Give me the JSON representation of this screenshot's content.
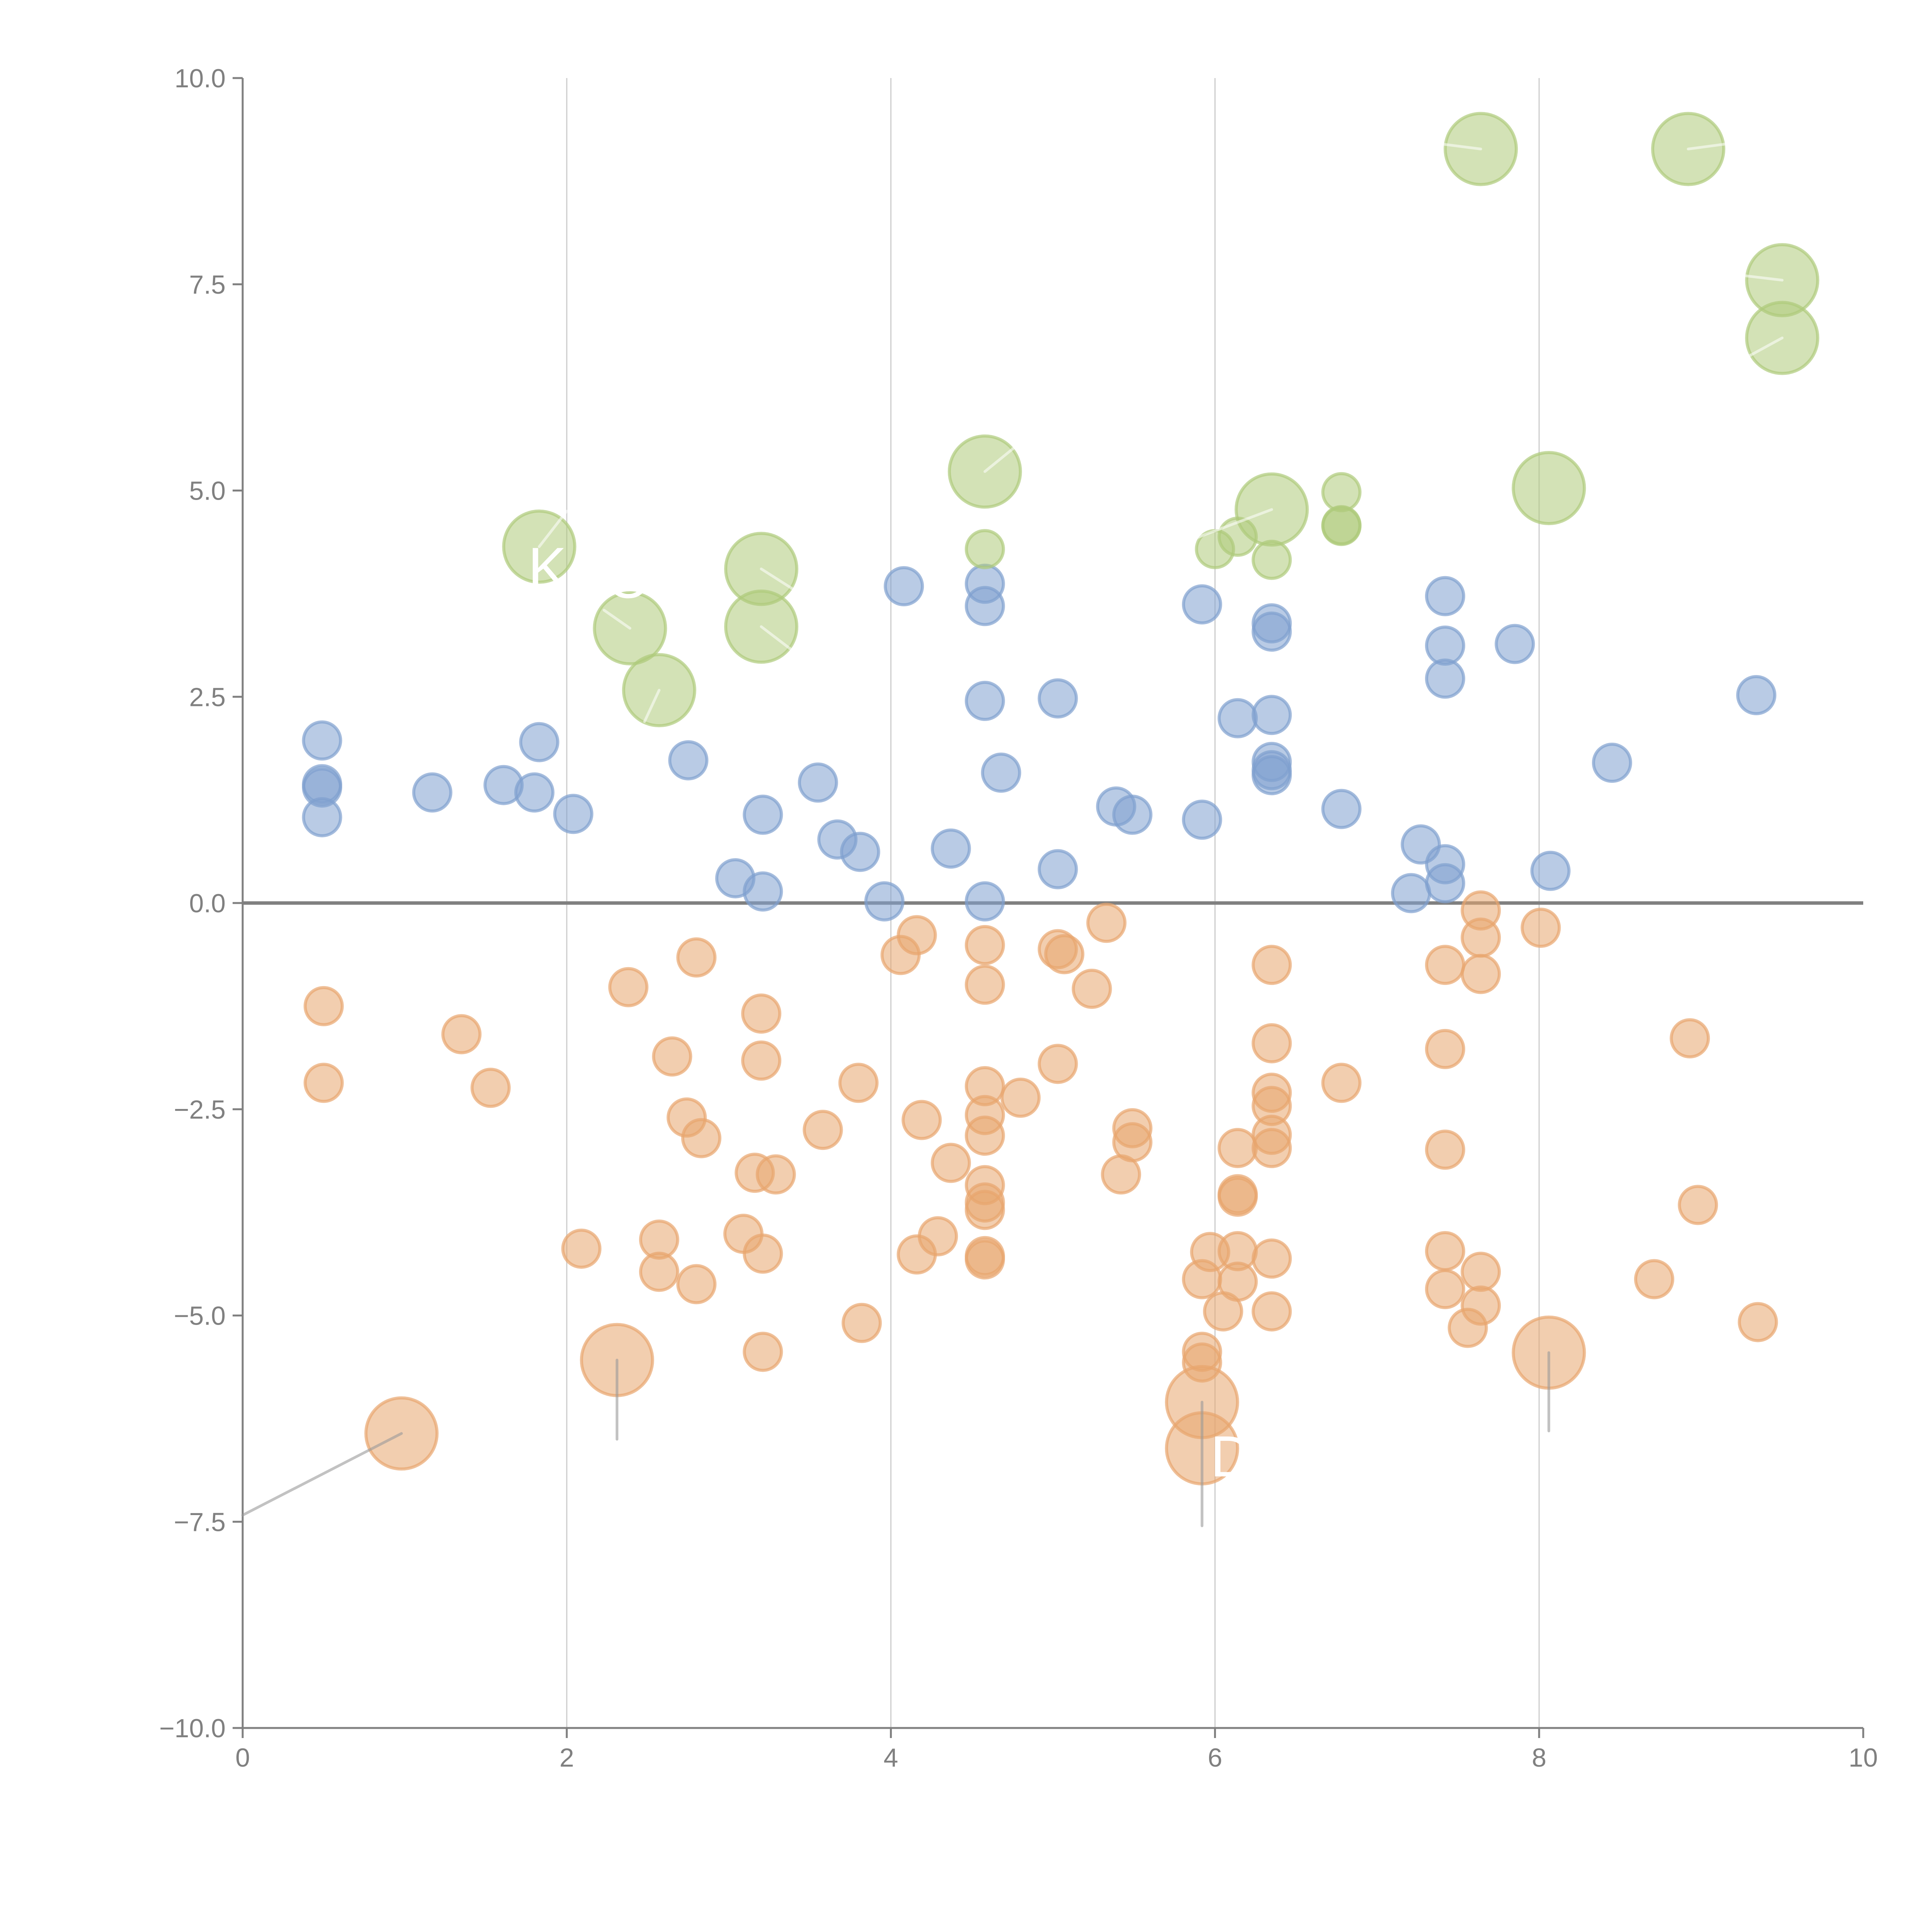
{
  "chart_data": {
    "type": "scatter",
    "subtype": "bubble",
    "title": "",
    "xlabel": "",
    "ylabel": "",
    "xlim": [
      0,
      10
    ],
    "ylim": [
      -10,
      10
    ],
    "x_ticks": [
      0,
      2,
      4,
      6,
      8,
      10
    ],
    "x_tick_labels": [
      "0",
      "2",
      "4",
      "6",
      "8",
      "10"
    ],
    "y_ticks": [
      10,
      7.5,
      5,
      2.5,
      0,
      -2.5,
      -5,
      -7.5,
      -10
    ],
    "y_tick_labels": [
      "10.0",
      "7.5",
      "5.0",
      "2.5",
      "0.0",
      "−2.5",
      "−5.0",
      "−7.5",
      "−10.0"
    ],
    "grid": "vertical",
    "zero_line": true,
    "legend": "none",
    "colors": {
      "blue": "#7fa0cf",
      "orange": "#e8a56e",
      "green": "#aecb7a",
      "axis": "#808080",
      "grid": "#cccccc"
    },
    "series": [
      {
        "name": "blue",
        "color": "#7fa0cf",
        "points": [
          {
            "x": 0.49,
            "y": 1.97,
            "size": 1
          },
          {
            "x": 0.49,
            "y": 1.44,
            "size": 1
          },
          {
            "x": 0.49,
            "y": 1.4,
            "size": 1
          },
          {
            "x": 0.49,
            "y": 1.04,
            "size": 1
          },
          {
            "x": 1.17,
            "y": 1.34,
            "size": 1
          },
          {
            "x": 1.61,
            "y": 1.43,
            "size": 1
          },
          {
            "x": 1.8,
            "y": 1.34,
            "size": 1
          },
          {
            "x": 1.83,
            "y": 1.95,
            "size": 1
          },
          {
            "x": 2.04,
            "y": 1.08,
            "size": 1
          },
          {
            "x": 2.75,
            "y": 1.73,
            "size": 1
          },
          {
            "x": 3.04,
            "y": 0.3,
            "size": 1
          },
          {
            "x": 3.21,
            "y": 0.14,
            "size": 1
          },
          {
            "x": 3.21,
            "y": 1.07,
            "size": 1
          },
          {
            "x": 3.55,
            "y": 1.46,
            "size": 1
          },
          {
            "x": 3.67,
            "y": 0.77,
            "size": 1
          },
          {
            "x": 3.81,
            "y": 0.62,
            "size": 1
          },
          {
            "x": 3.96,
            "y": 0.02,
            "size": 1
          },
          {
            "x": 4.08,
            "y": 3.84,
            "size": 1
          },
          {
            "x": 4.37,
            "y": 0.66,
            "size": 1
          },
          {
            "x": 4.58,
            "y": 3.87,
            "size": 1
          },
          {
            "x": 4.58,
            "y": 3.6,
            "size": 1
          },
          {
            "x": 4.58,
            "y": 2.45,
            "size": 1
          },
          {
            "x": 4.58,
            "y": 0.02,
            "size": 1
          },
          {
            "x": 4.68,
            "y": 1.58,
            "size": 1
          },
          {
            "x": 5.03,
            "y": 2.48,
            "size": 1
          },
          {
            "x": 5.03,
            "y": 0.41,
            "size": 1
          },
          {
            "x": 5.39,
            "y": 1.17,
            "size": 1
          },
          {
            "x": 5.49,
            "y": 1.07,
            "size": 1
          },
          {
            "x": 5.92,
            "y": 3.62,
            "size": 1
          },
          {
            "x": 5.92,
            "y": 1.01,
            "size": 1
          },
          {
            "x": 6.14,
            "y": 2.24,
            "size": 1
          },
          {
            "x": 6.35,
            "y": 3.39,
            "size": 1
          },
          {
            "x": 6.35,
            "y": 3.29,
            "size": 1
          },
          {
            "x": 6.35,
            "y": 2.28,
            "size": 1
          },
          {
            "x": 6.35,
            "y": 1.71,
            "size": 1
          },
          {
            "x": 6.35,
            "y": 1.61,
            "size": 1
          },
          {
            "x": 6.35,
            "y": 1.55,
            "size": 1
          },
          {
            "x": 6.78,
            "y": 1.14,
            "size": 1
          },
          {
            "x": 7.21,
            "y": 0.12,
            "size": 1
          },
          {
            "x": 7.27,
            "y": 0.71,
            "size": 1
          },
          {
            "x": 7.42,
            "y": 3.72,
            "size": 1
          },
          {
            "x": 7.42,
            "y": 3.12,
            "size": 1
          },
          {
            "x": 7.42,
            "y": 2.72,
            "size": 1
          },
          {
            "x": 7.42,
            "y": 0.47,
            "size": 1
          },
          {
            "x": 7.42,
            "y": 0.24,
            "size": 1
          },
          {
            "x": 7.85,
            "y": 3.14,
            "size": 1
          },
          {
            "x": 8.07,
            "y": 0.39,
            "size": 1
          },
          {
            "x": 8.45,
            "y": 1.7,
            "size": 1
          },
          {
            "x": 9.34,
            "y": 2.52,
            "size": 1
          }
        ]
      },
      {
        "name": "green",
        "color": "#aecb7a",
        "points": [
          {
            "x": 1.83,
            "y": 4.32,
            "size": 2
          },
          {
            "x": 2.39,
            "y": 3.33,
            "size": 2
          },
          {
            "x": 2.57,
            "y": 2.58,
            "size": 2
          },
          {
            "x": 3.2,
            "y": 4.05,
            "size": 2
          },
          {
            "x": 3.2,
            "y": 3.35,
            "size": 2
          },
          {
            "x": 4.58,
            "y": 5.23,
            "size": 2
          },
          {
            "x": 4.58,
            "y": 4.29,
            "size": 1
          },
          {
            "x": 6.0,
            "y": 4.29,
            "size": 1
          },
          {
            "x": 6.14,
            "y": 4.44,
            "size": 1
          },
          {
            "x": 6.35,
            "y": 4.77,
            "size": 2
          },
          {
            "x": 6.35,
            "y": 4.16,
            "size": 1
          },
          {
            "x": 6.78,
            "y": 4.98,
            "size": 1
          },
          {
            "x": 6.78,
            "y": 4.58,
            "size": 1
          },
          {
            "x": 6.78,
            "y": 4.57,
            "size": 1
          },
          {
            "x": 7.64,
            "y": 9.14,
            "size": 2
          },
          {
            "x": 8.06,
            "y": 5.03,
            "size": 2
          },
          {
            "x": 8.92,
            "y": 9.14,
            "size": 2
          },
          {
            "x": 9.5,
            "y": 7.55,
            "size": 2
          },
          {
            "x": 9.5,
            "y": 6.85,
            "size": 2
          }
        ]
      },
      {
        "name": "orange",
        "color": "#e8a56e",
        "points": [
          {
            "x": 0.5,
            "y": -1.25,
            "size": 1
          },
          {
            "x": 0.5,
            "y": -2.18,
            "size": 1
          },
          {
            "x": 1.35,
            "y": -1.59,
            "size": 1
          },
          {
            "x": 1.53,
            "y": -2.24,
            "size": 1
          },
          {
            "x": 2.09,
            "y": -4.19,
            "size": 1
          },
          {
            "x": 2.38,
            "y": -1.02,
            "size": 1
          },
          {
            "x": 2.57,
            "y": -4.08,
            "size": 1
          },
          {
            "x": 2.57,
            "y": -4.47,
            "size": 1
          },
          {
            "x": 2.65,
            "y": -1.86,
            "size": 1
          },
          {
            "x": 2.74,
            "y": -2.6,
            "size": 1
          },
          {
            "x": 2.8,
            "y": -0.66,
            "size": 1
          },
          {
            "x": 2.8,
            "y": -4.62,
            "size": 1
          },
          {
            "x": 2.83,
            "y": -2.85,
            "size": 1
          },
          {
            "x": 3.09,
            "y": -4.01,
            "size": 1
          },
          {
            "x": 3.16,
            "y": -3.27,
            "size": 1
          },
          {
            "x": 3.2,
            "y": -1.34,
            "size": 1
          },
          {
            "x": 3.2,
            "y": -1.91,
            "size": 1
          },
          {
            "x": 3.21,
            "y": -4.25,
            "size": 1
          },
          {
            "x": 3.21,
            "y": -5.44,
            "size": 1
          },
          {
            "x": 3.29,
            "y": -3.29,
            "size": 1
          },
          {
            "x": 3.58,
            "y": -2.75,
            "size": 1
          },
          {
            "x": 3.8,
            "y": -2.18,
            "size": 1
          },
          {
            "x": 3.82,
            "y": -5.09,
            "size": 1
          },
          {
            "x": 4.06,
            "y": -0.63,
            "size": 1
          },
          {
            "x": 4.16,
            "y": -4.26,
            "size": 1
          },
          {
            "x": 4.16,
            "y": -0.39,
            "size": 1
          },
          {
            "x": 4.19,
            "y": -2.63,
            "size": 1
          },
          {
            "x": 4.29,
            "y": -4.04,
            "size": 1
          },
          {
            "x": 4.37,
            "y": -3.15,
            "size": 1
          },
          {
            "x": 4.58,
            "y": -0.51,
            "size": 1
          },
          {
            "x": 4.58,
            "y": -0.99,
            "size": 1
          },
          {
            "x": 4.58,
            "y": -2.22,
            "size": 1
          },
          {
            "x": 4.58,
            "y": -2.57,
            "size": 1
          },
          {
            "x": 4.58,
            "y": -2.82,
            "size": 1
          },
          {
            "x": 4.58,
            "y": -3.42,
            "size": 1
          },
          {
            "x": 4.58,
            "y": -3.63,
            "size": 1
          },
          {
            "x": 4.58,
            "y": -3.72,
            "size": 1
          },
          {
            "x": 4.58,
            "y": -4.28,
            "size": 1
          },
          {
            "x": 4.58,
            "y": -4.32,
            "size": 1
          },
          {
            "x": 4.8,
            "y": -2.36,
            "size": 1
          },
          {
            "x": 5.03,
            "y": -0.56,
            "size": 1
          },
          {
            "x": 5.07,
            "y": -0.62,
            "size": 1
          },
          {
            "x": 5.03,
            "y": -1.95,
            "size": 1
          },
          {
            "x": 5.24,
            "y": -1.04,
            "size": 1
          },
          {
            "x": 5.33,
            "y": -0.24,
            "size": 1
          },
          {
            "x": 5.42,
            "y": -3.29,
            "size": 1
          },
          {
            "x": 5.49,
            "y": -2.73,
            "size": 1
          },
          {
            "x": 5.49,
            "y": -2.9,
            "size": 1
          },
          {
            "x": 5.92,
            "y": -4.56,
            "size": 1
          },
          {
            "x": 5.92,
            "y": -5.44,
            "size": 1
          },
          {
            "x": 5.92,
            "y": -5.57,
            "size": 1
          },
          {
            "x": 5.97,
            "y": -4.23,
            "size": 1
          },
          {
            "x": 6.05,
            "y": -4.95,
            "size": 1
          },
          {
            "x": 6.14,
            "y": -2.97,
            "size": 1
          },
          {
            "x": 6.14,
            "y": -3.53,
            "size": 1
          },
          {
            "x": 6.14,
            "y": -3.56,
            "size": 1
          },
          {
            "x": 6.14,
            "y": -4.22,
            "size": 1
          },
          {
            "x": 6.14,
            "y": -4.59,
            "size": 1
          },
          {
            "x": 6.35,
            "y": -0.75,
            "size": 1
          },
          {
            "x": 6.35,
            "y": -1.7,
            "size": 1
          },
          {
            "x": 6.35,
            "y": -2.3,
            "size": 1
          },
          {
            "x": 6.35,
            "y": -2.46,
            "size": 1
          },
          {
            "x": 6.35,
            "y": -2.81,
            "size": 1
          },
          {
            "x": 6.35,
            "y": -2.97,
            "size": 1
          },
          {
            "x": 6.35,
            "y": -4.31,
            "size": 1
          },
          {
            "x": 6.35,
            "y": -4.95,
            "size": 1
          },
          {
            "x": 6.78,
            "y": -2.18,
            "size": 1
          },
          {
            "x": 7.42,
            "y": -0.75,
            "size": 1
          },
          {
            "x": 7.42,
            "y": -1.77,
            "size": 1
          },
          {
            "x": 7.42,
            "y": -2.99,
            "size": 1
          },
          {
            "x": 7.42,
            "y": -4.22,
            "size": 1
          },
          {
            "x": 7.42,
            "y": -4.68,
            "size": 1
          },
          {
            "x": 7.56,
            "y": -5.15,
            "size": 1
          },
          {
            "x": 7.64,
            "y": -0.09,
            "size": 1
          },
          {
            "x": 7.64,
            "y": -0.42,
            "size": 1
          },
          {
            "x": 7.64,
            "y": -0.86,
            "size": 1
          },
          {
            "x": 7.64,
            "y": -4.47,
            "size": 1
          },
          {
            "x": 7.64,
            "y": -4.88,
            "size": 1
          },
          {
            "x": 8.01,
            "y": -0.3,
            "size": 1
          },
          {
            "x": 8.71,
            "y": -4.56,
            "size": 1
          },
          {
            "x": 8.93,
            "y": -1.64,
            "size": 1
          },
          {
            "x": 8.98,
            "y": -3.66,
            "size": 1
          },
          {
            "x": 9.35,
            "y": -5.08,
            "size": 1
          },
          {
            "x": 0.98,
            "y": -6.43,
            "size": 2
          },
          {
            "x": 2.31,
            "y": -5.54,
            "size": 2
          },
          {
            "x": 5.92,
            "y": -6.05,
            "size": 2
          },
          {
            "x": 5.92,
            "y": -6.61,
            "size": 2
          },
          {
            "x": 8.06,
            "y": -5.45,
            "size": 2
          }
        ]
      }
    ],
    "annotations": [
      {
        "text": "K",
        "x": 1.88,
        "y": 3.82,
        "anchor_x": 1.83,
        "anchor_y": 4.32
      },
      {
        "text": "O",
        "x": 2.38,
        "y": 3.7,
        "anchor_x": 2.39,
        "anchor_y": 3.33
      },
      {
        "text": "D",
        "x": 6.1,
        "y": -6.95,
        "anchor_x": 5.92,
        "anchor_y": -6.61
      }
    ],
    "leader_lines": [
      {
        "from": [
          0.98,
          -6.43
        ],
        "to": [
          0.0,
          -7.42
        ],
        "color": "#999999"
      },
      {
        "from": [
          2.31,
          -5.54
        ],
        "to": [
          2.31,
          -6.5
        ],
        "color": "#999999"
      },
      {
        "from": [
          5.92,
          -6.05
        ],
        "to": [
          5.92,
          -7.55
        ],
        "color": "#999999"
      },
      {
        "from": [
          8.06,
          -5.45
        ],
        "to": [
          8.06,
          -6.4
        ],
        "color": "#999999"
      },
      {
        "from": [
          1.83,
          4.32
        ],
        "to": [
          2.0,
          4.75
        ],
        "color": "#ffffff"
      },
      {
        "from": [
          2.39,
          3.33
        ],
        "to": [
          2.23,
          3.55
        ],
        "color": "#ffffff"
      },
      {
        "from": [
          2.57,
          2.58
        ],
        "to": [
          2.48,
          2.2
        ],
        "color": "#ffffff"
      },
      {
        "from": [
          3.2,
          4.05
        ],
        "to": [
          3.4,
          3.8
        ],
        "color": "#ffffff"
      },
      {
        "from": [
          3.2,
          3.35
        ],
        "to": [
          3.4,
          3.05
        ],
        "color": "#ffffff"
      },
      {
        "from": [
          4.58,
          5.23
        ],
        "to": [
          4.78,
          5.55
        ],
        "color": "#ffffff"
      },
      {
        "from": [
          6.35,
          4.77
        ],
        "to": [
          5.85,
          4.4
        ],
        "color": "#ffffff"
      },
      {
        "from": [
          7.64,
          9.14
        ],
        "to": [
          7.4,
          9.2
        ],
        "color": "#ffffff"
      },
      {
        "from": [
          8.92,
          9.14
        ],
        "to": [
          9.15,
          9.2
        ],
        "color": "#ffffff"
      },
      {
        "from": [
          9.5,
          7.55
        ],
        "to": [
          9.2,
          7.62
        ],
        "color": "#ffffff"
      },
      {
        "from": [
          9.5,
          6.85
        ],
        "to": [
          9.22,
          6.55
        ],
        "color": "#ffffff"
      }
    ]
  }
}
